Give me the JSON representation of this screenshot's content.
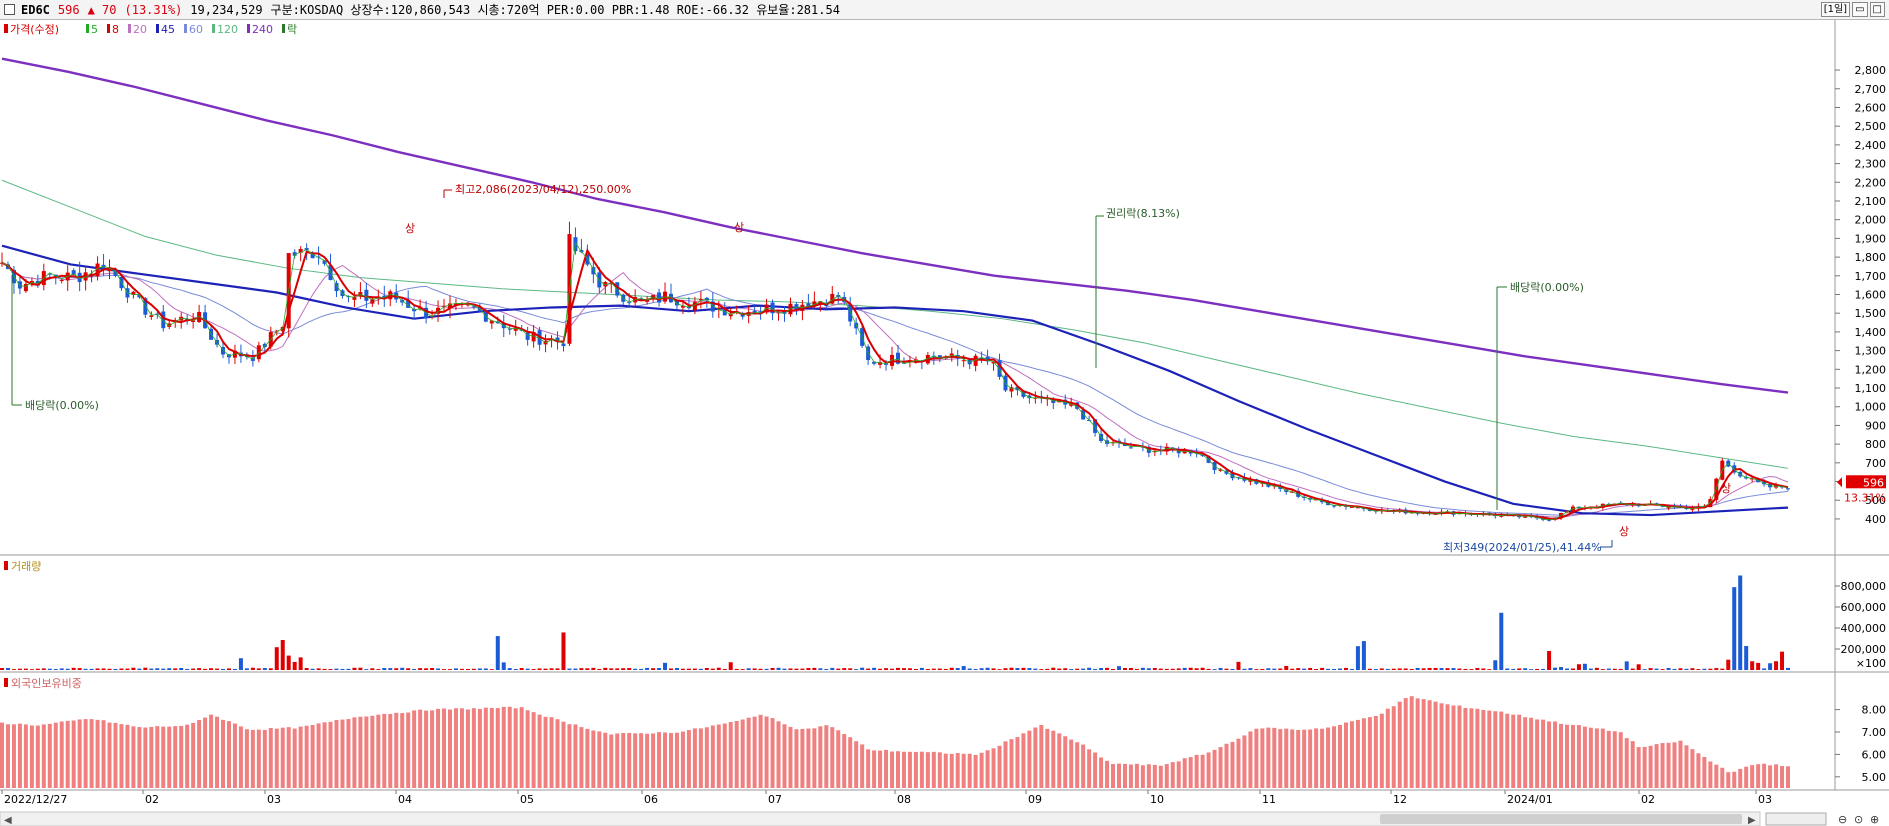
{
  "header": {
    "code": "ED6C",
    "price": "596",
    "change": "▲ 70",
    "change_pct": "(13.31%)",
    "volume": "19,234,529",
    "info": "구분:KOSDAQ 상장수:120,860,543 시총:720억 PER:0.00 PBR:1.48 ROE:-66.32 유보율:281.54",
    "period_button": "[1일]"
  },
  "legend": {
    "price_label": "가격(수정)",
    "ma": [
      {
        "label": "5",
        "color": "#22aa22"
      },
      {
        "label": "8",
        "color": "#d80000"
      },
      {
        "label": "20",
        "color": "#c070c0"
      },
      {
        "label": "45",
        "color": "#1c22b8"
      },
      {
        "label": "60",
        "color": "#7a8ad8"
      },
      {
        "label": "120",
        "color": "#5cb882"
      },
      {
        "label": "240",
        "color": "#7d2fc0"
      },
      {
        "label": "락",
        "color": "#2a7a2a"
      }
    ]
  },
  "volume_title": "거래량",
  "foreign_title": "외국인보유비중",
  "chart_data": {
    "type": "candlestick",
    "price_axis": {
      "ylim": [
        250,
        2950
      ],
      "ticks": [
        400,
        500,
        600,
        700,
        800,
        900,
        1000,
        1100,
        1200,
        1300,
        1400,
        1500,
        1600,
        1700,
        1800,
        1900,
        2000,
        2100,
        2200,
        2300,
        2400,
        2500,
        2600,
        2700,
        2800
      ]
    },
    "volume_axis": {
      "ylim": [
        0,
        1000000
      ],
      "ticks": [
        200000,
        400000,
        600000,
        800000
      ],
      "tick_labels": [
        "200,000",
        "400,000",
        "600,000",
        "800,000"
      ],
      "unit": "×100"
    },
    "foreign_axis": {
      "ylim": [
        4.5,
        9.5
      ],
      "ticks": [
        5,
        6,
        7,
        8
      ],
      "tick_labels": [
        "5.00",
        "6.00",
        "7.00",
        "8.00"
      ]
    },
    "x_labels": [
      "2022/12/27",
      "02",
      "03",
      "04",
      "05",
      "06",
      "07",
      "08",
      "09",
      "10",
      "11",
      "12",
      "2024/01",
      "02",
      "03"
    ],
    "current_price": {
      "value": "596",
      "pct": "13.31%"
    },
    "annotations": [
      {
        "text": "최고2,086(2023/04/12),250.00%",
        "value": 2086
      },
      {
        "text": "최저349(2024/01/25),41.44%",
        "value": 349
      },
      {
        "text": "권리락(8.13%)"
      },
      {
        "text": "배당락(0.00%)"
      },
      {
        "text": "배당락(0.00%)"
      }
    ],
    "limit_up_marker": "상",
    "ma240": [
      2850,
      2780,
      2700,
      2610,
      2520,
      2440,
      2350,
      2270,
      2190,
      2100,
      2030,
      1950,
      1880,
      1810,
      1750,
      1690,
      1650,
      1610,
      1560,
      1500,
      1440,
      1380,
      1320,
      1260,
      1210,
      1160,
      1110,
      1065
    ],
    "ma120": [
      2200,
      2050,
      1900,
      1800,
      1730,
      1680,
      1650,
      1620,
      1600,
      1580,
      1560,
      1550,
      1530,
      1500,
      1460,
      1400,
      1330,
      1240,
      1150,
      1060,
      980,
      900,
      830,
      780,
      720,
      660
    ],
    "ma45": [
      1850,
      1750,
      1700,
      1650,
      1600,
      1520,
      1460,
      1500,
      1520,
      1530,
      1500,
      1530,
      1510,
      1520,
      1500,
      1450,
      1320,
      1180,
      1020,
      870,
      730,
      590,
      470,
      420,
      410,
      430,
      450
    ]
  }
}
